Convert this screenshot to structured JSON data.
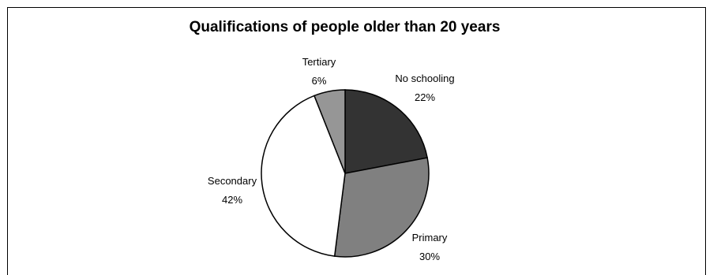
{
  "chart_data": {
    "type": "pie",
    "title": "Qualifications of people older than 20 years",
    "slices": [
      {
        "label": "No schooling",
        "value": 22,
        "value_label": "22%",
        "color": "#333333"
      },
      {
        "label": "Primary",
        "value": 30,
        "value_label": "30%",
        "color": "#808080"
      },
      {
        "label": "Secondary",
        "value": 42,
        "value_label": "42%",
        "color": "#ffffff"
      },
      {
        "label": "Tertiary",
        "value": 6,
        "value_label": "6%",
        "color": "#969696"
      }
    ],
    "start_angle": "12 o'clock",
    "direction": "clockwise",
    "legend": "none",
    "slice_outline_color": "#000000"
  }
}
